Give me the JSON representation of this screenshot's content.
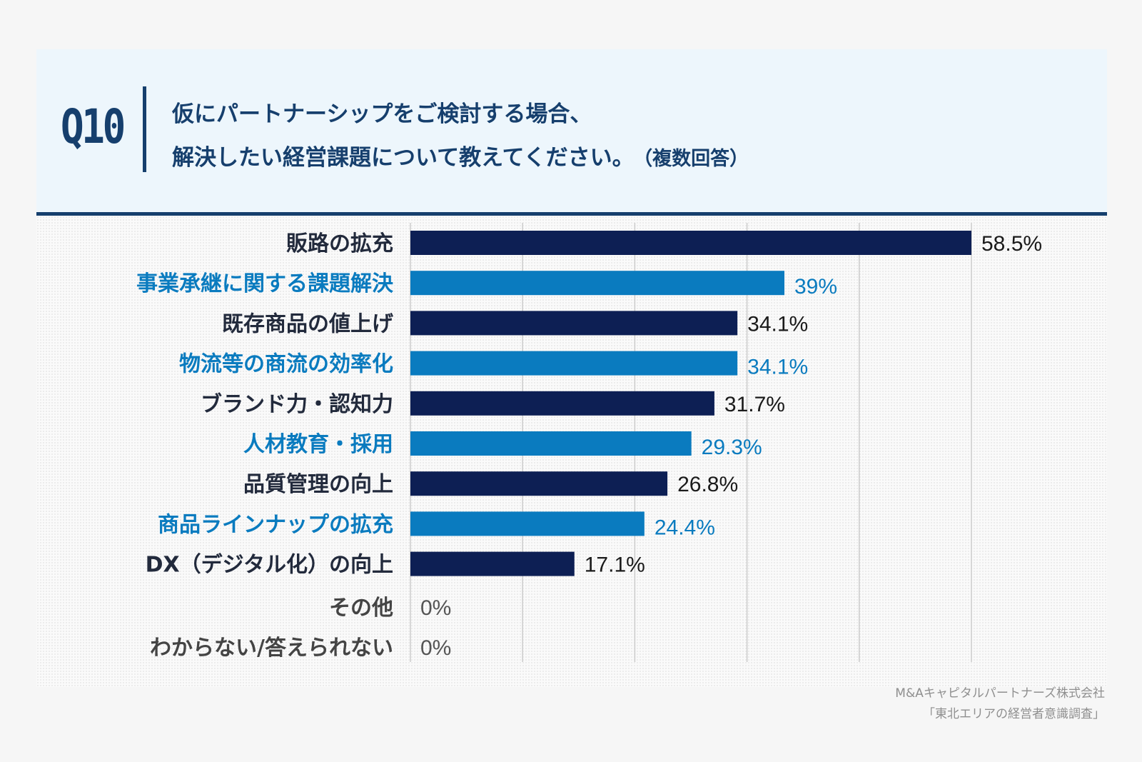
{
  "header": {
    "question_number": "Q10",
    "question_line1": "仮にパートナーシップをご検討する場合、",
    "question_line2": "解決したい経営課題について教えてください。",
    "question_note": "（複数回答）"
  },
  "colors": {
    "dark": "#0d1f54",
    "light": "#0a7bbf",
    "zero_label": "#555555",
    "grid": "#cccccc"
  },
  "chart_data": {
    "type": "bar",
    "orientation": "horizontal",
    "title": "仮にパートナーシップをご検討する場合、解決したい経営課題について教えてください。（複数回答）",
    "unit": "%",
    "xlim": [
      0,
      60
    ],
    "gridlines_at": [
      0,
      11.7,
      23.4,
      35.1,
      46.8,
      58.5
    ],
    "categories": [
      "販路の拡充",
      "事業承継に関する課題解決",
      "既存商品の値上げ",
      "物流等の商流の効率化",
      "ブランド力・認知力",
      "人材教育・採用",
      "品質管理の向上",
      "商品ラインナップの拡充",
      "DX（デジタル化）の向上",
      "その他",
      "わからない/答えられない"
    ],
    "values": [
      58.5,
      39,
      34.1,
      34.1,
      31.7,
      29.3,
      26.8,
      24.4,
      17.1,
      0,
      0
    ],
    "value_labels": [
      "58.5%",
      "39%",
      "34.1%",
      "34.1%",
      "31.7%",
      "29.3%",
      "26.8%",
      "24.4%",
      "17.1%",
      "0%",
      "0%"
    ],
    "color_pattern": [
      "dark",
      "light",
      "dark",
      "light",
      "dark",
      "light",
      "dark",
      "light",
      "dark",
      "zero",
      "zero"
    ]
  },
  "footer": {
    "company": "M&Aキャピタルパートナーズ株式会社",
    "survey": "「東北エリアの経営者意識調査」"
  }
}
